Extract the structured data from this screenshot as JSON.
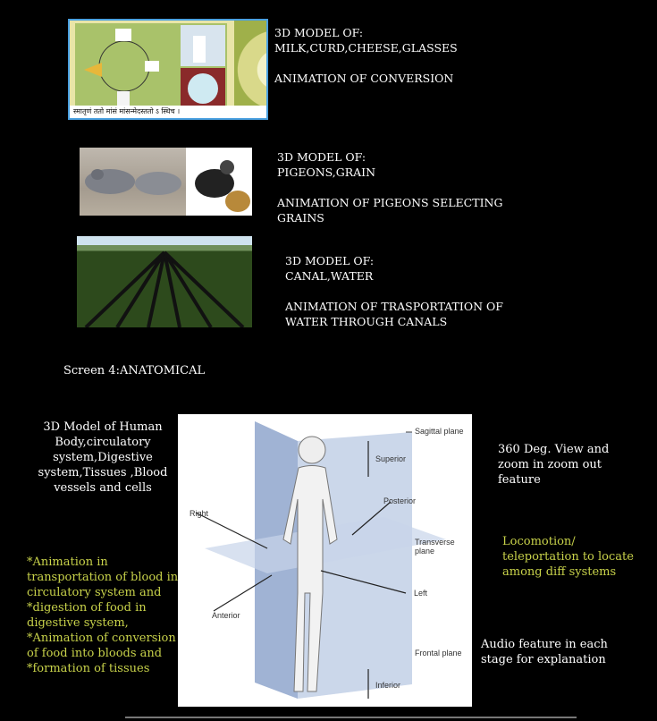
{
  "row1": {
    "heading": "3D MODEL OF:",
    "items": "MILK,CURD,CHEESE,GLASSES",
    "animation": "ANIMATION OF CONVERSION",
    "image_caption": "स्मातृणं ततो मांसं मांसन्मेदस्ततो ऽ स्थिच ।"
  },
  "row2": {
    "heading": "3D MODEL OF:",
    "items": "PIGEONS,GRAIN",
    "animation": "ANIMATION OF PIGEONS SELECTING\nGRAINS"
  },
  "row3": {
    "heading": "3D MODEL OF:",
    "items": "CANAL,WATER",
    "animation": "ANIMATION OF TRASPORTATION OF\nWATER THROUGH CANALS"
  },
  "screen_title": "Screen 4:ANATOMICAL",
  "anatomy": {
    "model_text": "3D Model of Human\nBody,circulatory\nsystem,Digestive\nsystem,Tissues ,Blood\nvessels and cells",
    "animation_text": "*Animation in\ntransportation of blood in\ncirculatory system and\n*digestion of food in\ndigestive system,\n*Animation of conversion\nof food into bloods and\n*formation of tissues",
    "view_text": "360 Deg. View and\nzoom in zoom out\nfeature",
    "locomotion_text": "Locomotion/\nteleportation to locate\namong diff systems",
    "audio_text": "Audio feature in each\nstage for explanation",
    "diagram_labels": {
      "sagittal": "Sagittal plane",
      "superior": "Superior",
      "posterior": "Posterior",
      "right": "Right",
      "transverse": "Transverse plane",
      "left": "Left",
      "anterior": "Anterior",
      "frontal": "Frontal plane",
      "inferior": "Inferior"
    }
  },
  "colors": {
    "accent_green": "#c8d24a",
    "image_border": "#4aa0e0"
  }
}
